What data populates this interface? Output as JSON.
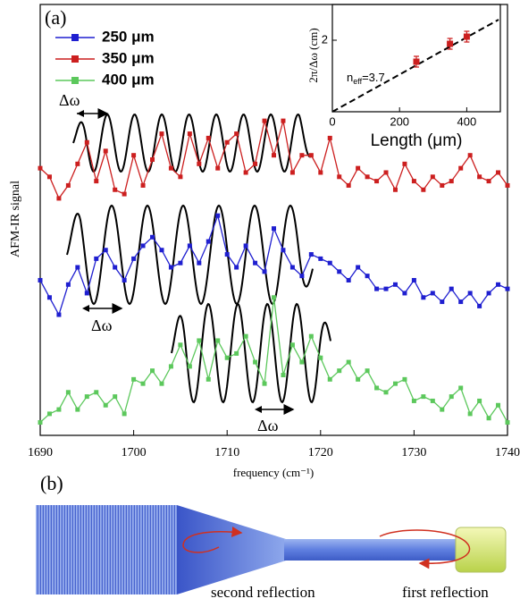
{
  "chart_data": [
    {
      "type": "line",
      "panel_label": "(a)",
      "x_label": "frequency (cm⁻¹)",
      "y_label": "AFM-IR signal",
      "x": [
        1690,
        1691,
        1692,
        1693,
        1694,
        1695,
        1696,
        1697,
        1698,
        1699,
        1700,
        1701,
        1702,
        1703,
        1704,
        1705,
        1706,
        1707,
        1708,
        1709,
        1710,
        1711,
        1712,
        1713,
        1714,
        1715,
        1716,
        1717,
        1718,
        1719,
        1720,
        1721,
        1722,
        1723,
        1724,
        1725,
        1726,
        1727,
        1728,
        1729,
        1730,
        1731,
        1732,
        1733,
        1734,
        1735,
        1736,
        1737,
        1738,
        1739,
        1740
      ],
      "series": [
        {
          "name": "250 μm",
          "color": "#1f1fd0",
          "values": [
            3.6,
            3.2,
            2.8,
            3.5,
            3.9,
            3.3,
            4.1,
            4.3,
            3.9,
            3.6,
            4.1,
            4.4,
            4.6,
            4.3,
            3.9,
            4.0,
            4.4,
            4.0,
            4.5,
            5.1,
            4.2,
            3.9,
            4.4,
            4.0,
            3.8,
            4.8,
            4.3,
            3.9,
            3.7,
            4.2,
            4.1,
            4.0,
            3.8,
            3.6,
            3.9,
            3.7,
            3.4,
            3.4,
            3.5,
            3.3,
            3.6,
            3.2,
            3.3,
            3.1,
            3.4,
            3.1,
            3.3,
            3.0,
            3.3,
            3.5,
            3.4
          ]
        },
        {
          "name": "350 μm",
          "color": "#cc1f1f",
          "values": [
            6.2,
            6.0,
            5.5,
            5.8,
            6.3,
            6.8,
            5.9,
            6.6,
            5.7,
            5.6,
            6.5,
            5.8,
            6.4,
            7.0,
            6.2,
            6.0,
            7.0,
            6.3,
            6.9,
            6.2,
            6.8,
            7.0,
            6.1,
            6.3,
            7.3,
            6.5,
            7.3,
            6.1,
            6.5,
            6.5,
            6.1,
            6.9,
            6.0,
            5.8,
            6.2,
            6.0,
            5.9,
            6.1,
            5.7,
            6.3,
            5.9,
            5.7,
            6.0,
            5.8,
            5.9,
            6.2,
            6.5,
            6.0,
            5.9,
            6.1,
            5.8
          ]
        },
        {
          "name": "400 μm",
          "color": "#5cc85c",
          "values": [
            0.3,
            0.5,
            0.6,
            1.0,
            0.6,
            0.9,
            1.0,
            0.7,
            0.9,
            0.5,
            1.3,
            1.2,
            1.5,
            1.2,
            1.6,
            2.1,
            1.6,
            2.2,
            1.3,
            2.2,
            1.8,
            1.9,
            2.3,
            1.7,
            1.2,
            3.2,
            1.4,
            2.1,
            1.7,
            2.3,
            1.8,
            1.3,
            1.5,
            1.7,
            1.3,
            1.5,
            1.1,
            1.0,
            1.2,
            1.3,
            0.8,
            0.9,
            0.8,
            0.6,
            0.9,
            1.1,
            0.5,
            0.8,
            0.4,
            0.7,
            0.3
          ]
        }
      ],
      "xlim": [
        1690,
        1740
      ],
      "xticks": [
        1690,
        1700,
        1710,
        1720,
        1730,
        1740
      ],
      "ylim": [
        0,
        10
      ],
      "annotations": [
        "Δω",
        "Δω",
        "Δω"
      ]
    },
    {
      "type": "scatter",
      "x_label": "Length (μm)",
      "y_label": "2π/Δω (cm)",
      "x": [
        250,
        350,
        400
      ],
      "values": [
        1.4,
        1.9,
        2.1
      ],
      "errors": [
        0.15,
        0.15,
        0.15
      ],
      "color": "#cc1f1f",
      "xlim": [
        0,
        500
      ],
      "xticks": [
        0,
        200,
        400
      ],
      "ylim": [
        0,
        3
      ],
      "yticks": [
        2
      ],
      "annotation": {
        "main": "n",
        "sub": "eff",
        "rest": "=3.7"
      }
    }
  ],
  "panel_b": {
    "label": "(b)",
    "annotations": [
      "second reflection",
      "first reflection"
    ]
  }
}
